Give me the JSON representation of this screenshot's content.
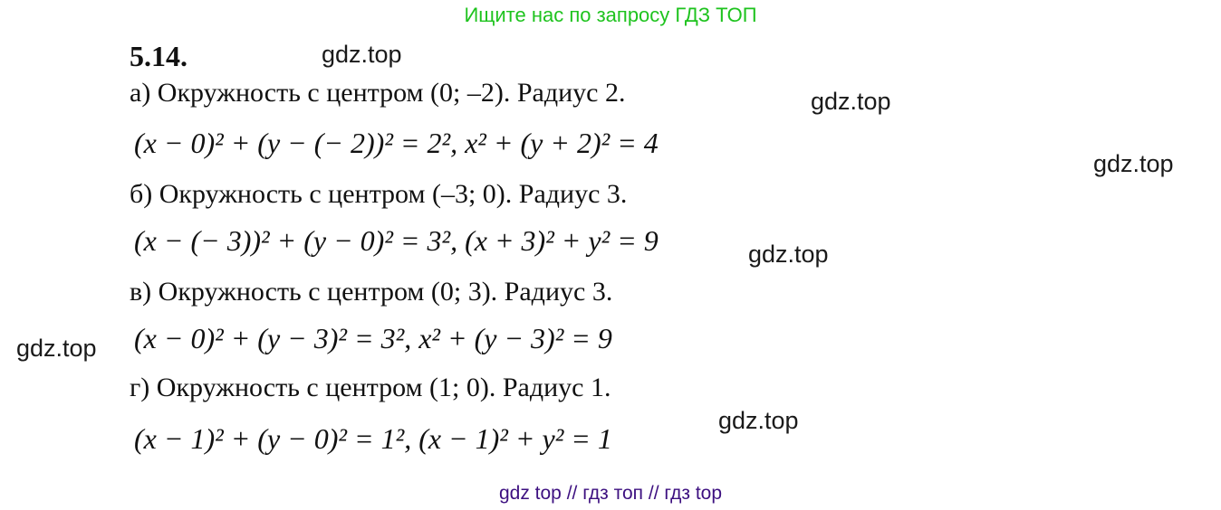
{
  "banner": "Ищите нас по запросу ГДЗ ТОП",
  "problem_number": "5.14.",
  "parts": [
    {
      "heading": "а) Окружность с центром (0; –2). Радиус 2.",
      "equation": "(x − 0)² + (y − (− 2))² = 2²,  x² + (y + 2)² = 4"
    },
    {
      "heading": "б) Окружность с центром (–3; 0). Радиус 3.",
      "equation": "(x − (− 3))² + (y − 0)² = 3²,  (x + 3)² + y² = 9"
    },
    {
      "heading": "в) Окружность с центром (0; 3). Радиус 3.",
      "equation": "(x − 0)² + (y − 3)² = 3²,  x² + (y − 3)² = 9"
    },
    {
      "heading": "г) Окружность с центром (1; 0). Радиус 1.",
      "equation": "(x − 1)² + (y − 0)² = 1²,  (x − 1)² + y² = 1"
    }
  ],
  "watermark": "gdz.top",
  "footer": "gdz top  //  гдз топ  //  гдз top",
  "colors": {
    "banner": "#1ec31e",
    "footer": "#3d1080"
  }
}
